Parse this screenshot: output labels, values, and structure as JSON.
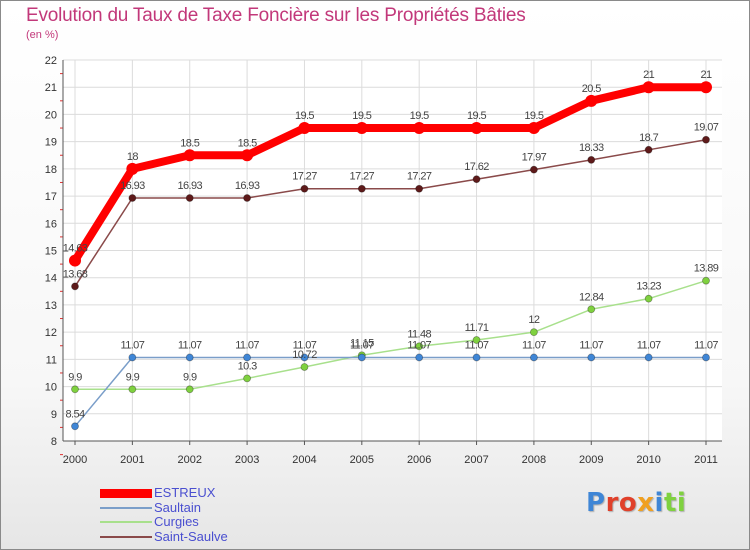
{
  "chart_data": {
    "type": "line",
    "title": "Evolution du Taux de Taxe Foncière sur les Propriétés Bâties",
    "subtitle": "(en %)",
    "x": [
      "2000",
      "2001",
      "2002",
      "2003",
      "2004",
      "2005",
      "2006",
      "2007",
      "2008",
      "2009",
      "2010",
      "2011"
    ],
    "ylim": [
      8,
      22
    ],
    "yticks": [
      8,
      9,
      10,
      11,
      12,
      13,
      14,
      15,
      16,
      17,
      18,
      19,
      20,
      21,
      22
    ],
    "grid": true,
    "legend_position": "bottom-left",
    "series": [
      {
        "name": "ESTREUX",
        "color": "#ff0000",
        "marker": "#ff0000",
        "values": [
          14.63,
          18,
          18.5,
          18.5,
          19.5,
          19.5,
          19.5,
          19.5,
          19.5,
          20.5,
          21,
          21
        ],
        "labels": [
          "14.63",
          "18",
          "18.5",
          "18.5",
          "19.5",
          "19.5",
          "19.5",
          "19.5",
          "19.5",
          "20.5",
          "21",
          "21"
        ]
      },
      {
        "name": "Saultain",
        "color": "#7a9ec9",
        "marker": "#3f86d6",
        "values": [
          8.54,
          11.07,
          11.07,
          11.07,
          11.07,
          11.07,
          11.07,
          11.07,
          11.07,
          11.07,
          11.07,
          11.07
        ],
        "labels": [
          "8.54",
          "11.07",
          "11.07",
          "11.07",
          "11.07",
          "11.07",
          "11.07",
          "11.07",
          "11.07",
          "11.07",
          "11.07",
          "11.07"
        ]
      },
      {
        "name": "Curgies",
        "color": "#a8e08c",
        "marker": "#7fd13f",
        "values": [
          9.9,
          9.9,
          9.9,
          10.3,
          10.72,
          11.15,
          11.48,
          11.71,
          12,
          12.84,
          13.23,
          13.89
        ],
        "labels": [
          "9.9",
          "9.9",
          "9.9",
          "10.3",
          "10.72",
          "11.15",
          "11.48",
          "11.71",
          "12",
          "12.84",
          "13.23",
          "13.89"
        ]
      },
      {
        "name": "Saint-Saulve",
        "color": "#8a4a4a",
        "marker": "#5e1a1a",
        "values": [
          13.68,
          16.93,
          16.93,
          16.93,
          17.27,
          17.27,
          17.27,
          17.62,
          17.97,
          18.33,
          18.7,
          19.07
        ],
        "labels": [
          "13.68",
          "16.93",
          "16.93",
          "16.93",
          "17.27",
          "17.27",
          "17.27",
          "17.62",
          "17.97",
          "18.33",
          "18.7",
          "19.07"
        ]
      }
    ]
  },
  "logo": {
    "text": "Proxiti",
    "letters": [
      {
        "ch": "P",
        "color": "#3f86d6"
      },
      {
        "ch": "r",
        "color": "#e0402a"
      },
      {
        "ch": "o",
        "color": "#e0402a"
      },
      {
        "ch": "x",
        "color": "#f0a020"
      },
      {
        "ch": "i",
        "color": "#3f86d6"
      },
      {
        "ch": "t",
        "color": "#7fd13f"
      },
      {
        "ch": "i",
        "color": "#7fd13f"
      }
    ]
  }
}
